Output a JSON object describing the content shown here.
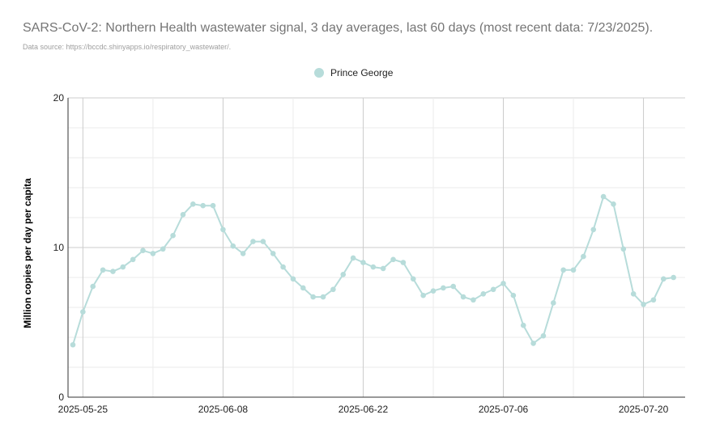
{
  "chart_data": {
    "type": "line",
    "title": "SARS-CoV-2: Northern Health wastewater signal, 3 day averages, last 60 days (most recent data: 7/23/2025).",
    "subtitle": "Data source: https://bccdc.shinyapps.io/respiratory_wastewater/.",
    "ylabel": "Million copies per day per capita",
    "xlabel": "",
    "ylim": [
      0,
      20
    ],
    "yticks": [
      0,
      10,
      20
    ],
    "xlim": [
      "2025-05-24",
      "2025-07-24"
    ],
    "xticks": [
      "2025-05-25",
      "2025-06-08",
      "2025-06-22",
      "2025-07-06",
      "2025-07-20"
    ],
    "grid": true,
    "legend_position": "top",
    "series": [
      {
        "name": "Prince George",
        "color": "#b7dcda",
        "points": [
          [
            "2025-05-24",
            3.5
          ],
          [
            "2025-05-25",
            5.7
          ],
          [
            "2025-05-26",
            7.4
          ],
          [
            "2025-05-27",
            8.5
          ],
          [
            "2025-05-28",
            8.4
          ],
          [
            "2025-05-29",
            8.7
          ],
          [
            "2025-05-30",
            9.2
          ],
          [
            "2025-05-31",
            9.8
          ],
          [
            "2025-06-01",
            9.6
          ],
          [
            "2025-06-02",
            9.9
          ],
          [
            "2025-06-03",
            10.8
          ],
          [
            "2025-06-04",
            12.2
          ],
          [
            "2025-06-05",
            12.9
          ],
          [
            "2025-06-06",
            12.8
          ],
          [
            "2025-06-07",
            12.8
          ],
          [
            "2025-06-08",
            11.2
          ],
          [
            "2025-06-09",
            10.1
          ],
          [
            "2025-06-10",
            9.6
          ],
          [
            "2025-06-11",
            10.4
          ],
          [
            "2025-06-12",
            10.4
          ],
          [
            "2025-06-13",
            9.6
          ],
          [
            "2025-06-14",
            8.7
          ],
          [
            "2025-06-15",
            7.9
          ],
          [
            "2025-06-16",
            7.3
          ],
          [
            "2025-06-17",
            6.7
          ],
          [
            "2025-06-18",
            6.7
          ],
          [
            "2025-06-19",
            7.2
          ],
          [
            "2025-06-20",
            8.2
          ],
          [
            "2025-06-21",
            9.3
          ],
          [
            "2025-06-22",
            9.0
          ],
          [
            "2025-06-23",
            8.7
          ],
          [
            "2025-06-24",
            8.6
          ],
          [
            "2025-06-25",
            9.2
          ],
          [
            "2025-06-26",
            9.0
          ],
          [
            "2025-06-27",
            7.9
          ],
          [
            "2025-06-28",
            6.8
          ],
          [
            "2025-06-29",
            7.1
          ],
          [
            "2025-06-30",
            7.3
          ],
          [
            "2025-07-01",
            7.4
          ],
          [
            "2025-07-02",
            6.7
          ],
          [
            "2025-07-03",
            6.5
          ],
          [
            "2025-07-04",
            6.9
          ],
          [
            "2025-07-05",
            7.2
          ],
          [
            "2025-07-06",
            7.6
          ],
          [
            "2025-07-07",
            6.8
          ],
          [
            "2025-07-08",
            4.8
          ],
          [
            "2025-07-09",
            3.6
          ],
          [
            "2025-07-10",
            4.1
          ],
          [
            "2025-07-11",
            6.3
          ],
          [
            "2025-07-12",
            8.5
          ],
          [
            "2025-07-13",
            8.5
          ],
          [
            "2025-07-14",
            9.4
          ],
          [
            "2025-07-15",
            11.2
          ],
          [
            "2025-07-16",
            13.4
          ],
          [
            "2025-07-17",
            12.9
          ],
          [
            "2025-07-18",
            9.9
          ],
          [
            "2025-07-19",
            6.9
          ],
          [
            "2025-07-20",
            6.2
          ],
          [
            "2025-07-21",
            6.5
          ],
          [
            "2025-07-22",
            7.9
          ],
          [
            "2025-07-23",
            8.0
          ]
        ]
      }
    ]
  }
}
